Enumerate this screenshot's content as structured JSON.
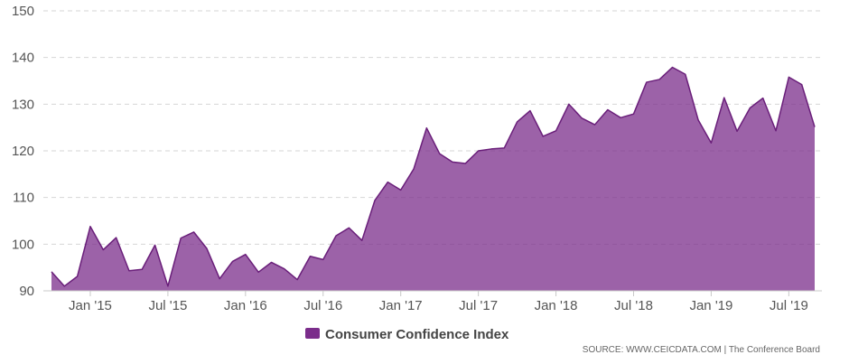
{
  "chart_data": {
    "type": "area",
    "title": "",
    "xlabel": "",
    "ylabel": "",
    "ylim": [
      90,
      150
    ],
    "yticks": [
      90,
      100,
      110,
      120,
      130,
      140,
      150
    ],
    "grid": true,
    "legend_position": "bottom-center",
    "x_tick_labels": [
      "Jan '15",
      "Jul '15",
      "Jan '16",
      "Jul '16",
      "Jan '17",
      "Jul '17",
      "Jan '18",
      "Jul '18",
      "Jan '19",
      "Jul '19"
    ],
    "x_tick_months": [
      "2015-01",
      "2015-07",
      "2016-01",
      "2016-07",
      "2017-01",
      "2017-07",
      "2018-01",
      "2018-07",
      "2019-01",
      "2019-07"
    ],
    "x": [
      "2014-10",
      "2014-11",
      "2014-12",
      "2015-01",
      "2015-02",
      "2015-03",
      "2015-04",
      "2015-05",
      "2015-06",
      "2015-07",
      "2015-08",
      "2015-09",
      "2015-10",
      "2015-11",
      "2015-12",
      "2016-01",
      "2016-02",
      "2016-03",
      "2016-04",
      "2016-05",
      "2016-06",
      "2016-07",
      "2016-08",
      "2016-09",
      "2016-10",
      "2016-11",
      "2016-12",
      "2017-01",
      "2017-02",
      "2017-03",
      "2017-04",
      "2017-05",
      "2017-06",
      "2017-07",
      "2017-08",
      "2017-09",
      "2017-10",
      "2017-11",
      "2017-12",
      "2018-01",
      "2018-02",
      "2018-03",
      "2018-04",
      "2018-05",
      "2018-06",
      "2018-07",
      "2018-08",
      "2018-09",
      "2018-10",
      "2018-11",
      "2018-12",
      "2019-01",
      "2019-02",
      "2019-03",
      "2019-04",
      "2019-05",
      "2019-06",
      "2019-07",
      "2019-08",
      "2019-09"
    ],
    "series": [
      {
        "name": "Consumer Confidence Index",
        "color": "#7b2d8b",
        "values": [
          94.1,
          91.0,
          93.1,
          103.8,
          98.8,
          101.4,
          94.3,
          94.6,
          99.8,
          91.0,
          101.3,
          102.6,
          99.1,
          92.6,
          96.3,
          97.8,
          94.0,
          96.1,
          94.7,
          92.4,
          97.4,
          96.7,
          101.8,
          103.5,
          100.8,
          109.4,
          113.3,
          111.6,
          116.1,
          124.9,
          119.4,
          117.6,
          117.3,
          120.0,
          120.4,
          120.6,
          126.2,
          128.6,
          123.1,
          124.3,
          130.0,
          127.0,
          125.6,
          128.8,
          127.1,
          127.9,
          134.7,
          135.3,
          137.9,
          136.4,
          126.6,
          121.7,
          131.4,
          124.2,
          129.2,
          131.3,
          124.3,
          135.8,
          134.2,
          125.1
        ]
      }
    ],
    "source": "SOURCE: WWW.CEICDATA.COM | The Conference Board"
  }
}
